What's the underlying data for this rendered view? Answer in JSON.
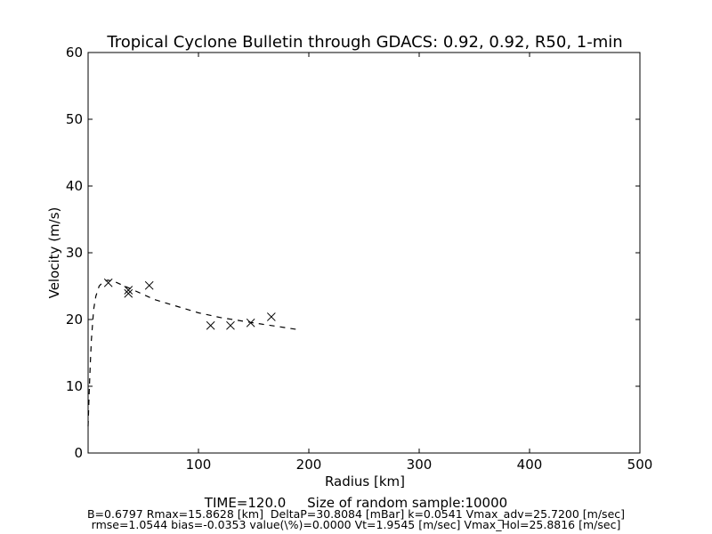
{
  "chart_data": {
    "type": "scatter",
    "title": "Tropical Cyclone Bulletin through GDACS: 0.92, 0.92, R50, 1-min",
    "xlabel": "Radius [km]",
    "ylabel": "Velocity (m/s)",
    "xlim": [
      0,
      500
    ],
    "ylim": [
      0,
      60
    ],
    "xticks": [
      100,
      200,
      300,
      400,
      500
    ],
    "yticks": [
      0,
      10,
      20,
      30,
      40,
      50,
      60
    ],
    "grid": false,
    "observations": {
      "marker": "x",
      "x": [
        18.3,
        36.5,
        36.5,
        55.4,
        111,
        129,
        147.3,
        166
      ],
      "y": [
        25.5,
        24.4,
        23.9,
        25.1,
        19.1,
        19.1,
        19.5,
        20.4
      ]
    },
    "fitted_profile": {
      "style": "dashed",
      "x": [
        0,
        1,
        2,
        3,
        5,
        7,
        10,
        14,
        18,
        25,
        40,
        60,
        80,
        100,
        120,
        150,
        170,
        190
      ],
      "y": [
        4,
        9,
        13.5,
        17,
        21.5,
        23.5,
        25,
        25.7,
        25.9,
        25.6,
        24.5,
        23,
        22,
        21,
        20.3,
        19.5,
        19,
        18.5
      ]
    },
    "footer": {
      "line1": "TIME=120.0     Size of random sample:10000",
      "line2": "B=0.6797 Rmax=15.8628 [km]  DeltaP=30.8084 [mBar] k=0.0541 Vmax_adv=25.7200 [m/sec]",
      "line3": "rmse=1.0544 bias=-0.0353 value(\\%)=0.0000 Vt=1.9545 [m/sec] Vmax_Hol=25.8816 [m/sec]"
    }
  }
}
